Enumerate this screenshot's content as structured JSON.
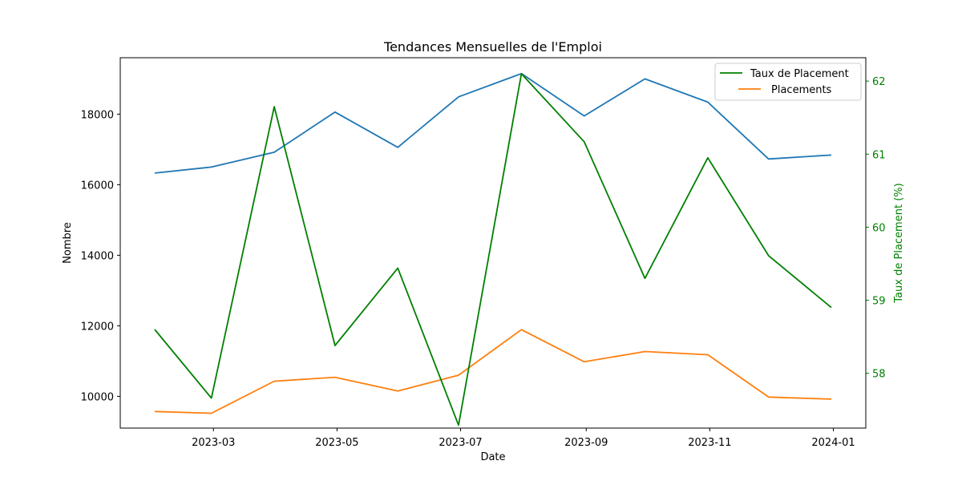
{
  "chart_data": {
    "type": "line",
    "title": "Tendances Mensuelles de l'Emploi",
    "xlabel": "Date",
    "ylabel": "Nombre",
    "y2label": "Taux de Placement (%)",
    "x": [
      "2023-01-31",
      "2023-02-28",
      "2023-03-31",
      "2023-04-30",
      "2023-05-31",
      "2023-06-30",
      "2023-07-31",
      "2023-08-31",
      "2023-09-30",
      "2023-10-31",
      "2023-11-30",
      "2023-12-31"
    ],
    "xticks": [
      "2023-03",
      "2023-05",
      "2023-07",
      "2023-09",
      "2023-11",
      "2024-01"
    ],
    "xlim": [
      "2023-01-14",
      "2024-01-17"
    ],
    "ylim": [
      9100,
      19600
    ],
    "y2lim": [
      57.25,
      62.32
    ],
    "yticks": [
      10000,
      12000,
      14000,
      16000,
      18000
    ],
    "y2ticks": [
      58,
      59,
      60,
      61,
      62
    ],
    "series": [
      {
        "name": "",
        "axis": "left",
        "color": "#1f77b4",
        "values": [
          16330,
          16500,
          16920,
          18060,
          17060,
          18490,
          19150,
          17950,
          19000,
          18340,
          16730,
          16840
        ]
      },
      {
        "name": "Placements",
        "axis": "left",
        "color": "#ff7f0e",
        "values": [
          9570,
          9520,
          10430,
          10540,
          10150,
          10600,
          11890,
          10980,
          11270,
          11180,
          9980,
          9920
        ]
      },
      {
        "name": "Taux de Placement",
        "axis": "right",
        "color": "#008000",
        "values": [
          58.6,
          57.66,
          61.65,
          58.38,
          59.44,
          57.29,
          62.1,
          61.17,
          59.3,
          60.95,
          59.61,
          58.9
        ]
      }
    ],
    "legend": {
      "placement": "top-right",
      "entries": [
        "Taux de Placement",
        "Placements"
      ]
    },
    "grid": false
  }
}
